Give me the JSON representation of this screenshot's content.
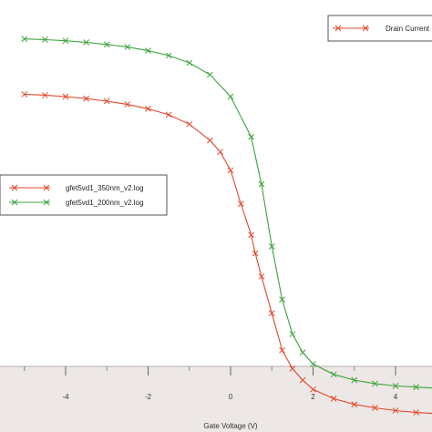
{
  "chart_data": {
    "type": "line",
    "title": "",
    "xlabel": "Gate Voltage (V)",
    "ylabel": "",
    "xlim": [
      -5.5,
      5.0
    ],
    "x_ticks": [
      -4,
      -2,
      0,
      2,
      4
    ],
    "x_tick_labels": [
      "-4",
      "-2",
      "0",
      "2",
      "4"
    ],
    "y_scale": "log",
    "grid": false,
    "legends": [
      {
        "placement": "top-right",
        "entries": [
          "Drain Current"
        ]
      },
      {
        "placement": "middle-left",
        "entries": [
          "gfet5vd1_350nm_v2.log",
          "gfet5vd1_200nm_v2.log"
        ]
      }
    ],
    "series": [
      {
        "name": "gfet5vd1_350nm_v2.log",
        "color": "#e0482a",
        "marker": "x",
        "x": [
          -5.0,
          -4.5,
          -4.0,
          -3.5,
          -3.0,
          -2.5,
          -2.0,
          -1.5,
          -1.0,
          -0.5,
          -0.25,
          0.0,
          0.25,
          0.5,
          0.6,
          0.75,
          1.0,
          1.25,
          1.5,
          1.75,
          2.0,
          2.5,
          3.0,
          3.5,
          4.0,
          4.5,
          5.0
        ],
        "y": [
          0.69,
          0.686,
          0.68,
          0.671,
          0.66,
          0.646,
          0.627,
          0.601,
          0.56,
          0.49,
          0.44,
          0.36,
          0.215,
          0.08,
          0.0,
          -0.1,
          -0.26,
          -0.42,
          -0.5,
          -0.55,
          -0.59,
          -0.63,
          -0.655,
          -0.67,
          -0.682,
          -0.69,
          -0.695
        ]
      },
      {
        "name": "gfet5vd1_200nm_v2.log",
        "color": "#3ca33c",
        "marker": "x",
        "x": [
          -5.0,
          -4.5,
          -4.0,
          -3.5,
          -3.0,
          -2.5,
          -2.0,
          -1.5,
          -1.0,
          -0.5,
          0.0,
          0.5,
          0.75,
          1.0,
          1.25,
          1.5,
          1.75,
          2.0,
          2.5,
          3.0,
          3.5,
          4.0,
          4.5,
          5.0
        ],
        "y": [
          0.93,
          0.927,
          0.922,
          0.915,
          0.906,
          0.895,
          0.879,
          0.858,
          0.826,
          0.775,
          0.68,
          0.505,
          0.3,
          0.03,
          -0.2,
          -0.35,
          -0.43,
          -0.48,
          -0.525,
          -0.55,
          -0.565,
          -0.575,
          -0.58,
          -0.585
        ]
      }
    ]
  }
}
